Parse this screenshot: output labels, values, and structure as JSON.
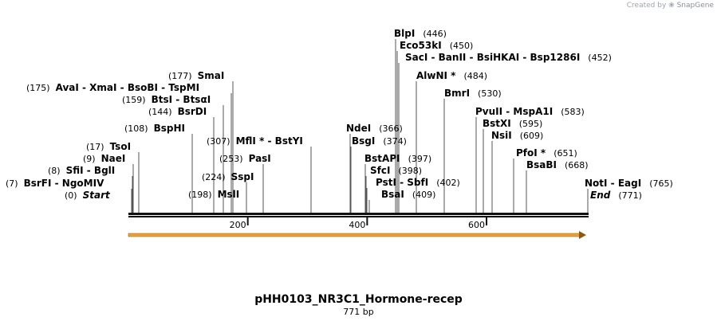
{
  "credit": {
    "prefix": "Created by",
    "brand": "SnapGene"
  },
  "plasmid": {
    "name": "pHH0103_NR3C1_Hormone-recep",
    "length_label": "771 bp",
    "length_bp": 771
  },
  "ruler": {
    "ticks": [
      {
        "bp": 200,
        "label": "200"
      },
      {
        "bp": 400,
        "label": "400"
      },
      {
        "bp": 600,
        "label": "600"
      }
    ]
  },
  "features": [
    {
      "start": 0,
      "end": 767,
      "color": "#f0a030",
      "direction": "forward"
    }
  ],
  "sites": [
    {
      "pos": "(0)",
      "bp": 0,
      "names": [
        "Start"
      ],
      "italic": true
    },
    {
      "pos": "(7)",
      "bp": 7,
      "names": [
        "BsrFI",
        "NgoMIV"
      ]
    },
    {
      "pos": "(8)",
      "bp": 8,
      "names": [
        "SfiI",
        "BglI"
      ]
    },
    {
      "pos": "(9)",
      "bp": 9,
      "names": [
        "NaeI"
      ]
    },
    {
      "pos": "(17)",
      "bp": 17,
      "names": [
        "TsoI"
      ]
    },
    {
      "pos": "(108)",
      "bp": 108,
      "names": [
        "BspHI"
      ]
    },
    {
      "pos": "(144)",
      "bp": 144,
      "names": [
        "BsrDI"
      ]
    },
    {
      "pos": "(159)",
      "bp": 159,
      "names": [
        "BtsI",
        "BtsαI"
      ]
    },
    {
      "pos": "(175)",
      "bp": 175,
      "names": [
        "AvaI",
        "XmaI",
        "BsoBI",
        "TspMI"
      ]
    },
    {
      "pos": "(177)",
      "bp": 177,
      "names": [
        "SmaI"
      ]
    },
    {
      "pos": "(198)",
      "bp": 198,
      "names": [
        "MslI"
      ]
    },
    {
      "pos": "(224)",
      "bp": 224,
      "names": [
        "SspI"
      ]
    },
    {
      "pos": "(253)",
      "bp": 253,
      "names": [
        "PasI"
      ]
    },
    {
      "pos": "(307)",
      "bp": 307,
      "names": [
        "MflI *",
        "BstYI"
      ]
    },
    {
      "pos": "(366)",
      "bp": 366,
      "names": [
        "NdeI"
      ]
    },
    {
      "pos": "(374)",
      "bp": 374,
      "names": [
        "BsgI"
      ]
    },
    {
      "pos": "(397)",
      "bp": 397,
      "names": [
        "BstAPI"
      ]
    },
    {
      "pos": "(398)",
      "bp": 398,
      "names": [
        "SfcI"
      ]
    },
    {
      "pos": "(402)",
      "bp": 402,
      "names": [
        "PstI",
        "SbfI"
      ]
    },
    {
      "pos": "(409)",
      "bp": 409,
      "names": [
        "BsaI"
      ]
    },
    {
      "pos": "(446)",
      "bp": 446,
      "names": [
        "BlpI"
      ]
    },
    {
      "pos": "(450)",
      "bp": 450,
      "names": [
        "Eco53kI"
      ]
    },
    {
      "pos": "(452)",
      "bp": 452,
      "names": [
        "SacI",
        "BanII",
        "BsiHKAI",
        "Bsp1286I"
      ]
    },
    {
      "pos": "(484)",
      "bp": 484,
      "names": [
        "AlwNI *"
      ]
    },
    {
      "pos": "(530)",
      "bp": 530,
      "names": [
        "BmrI"
      ]
    },
    {
      "pos": "(583)",
      "bp": 583,
      "names": [
        "PvuII",
        "MspA1I"
      ]
    },
    {
      "pos": "(595)",
      "bp": 595,
      "names": [
        "BstXI"
      ]
    },
    {
      "pos": "(609)",
      "bp": 609,
      "names": [
        "NsiI"
      ]
    },
    {
      "pos": "(651)",
      "bp": 651,
      "names": [
        "PfoI *"
      ]
    },
    {
      "pos": "(668)",
      "bp": 668,
      "names": [
        "BsaBI"
      ]
    },
    {
      "pos": "(765)",
      "bp": 765,
      "names": [
        "NotI",
        "EagI"
      ]
    },
    {
      "pos": "(771)",
      "bp": 771,
      "names": [
        "End"
      ],
      "italic": true
    }
  ]
}
